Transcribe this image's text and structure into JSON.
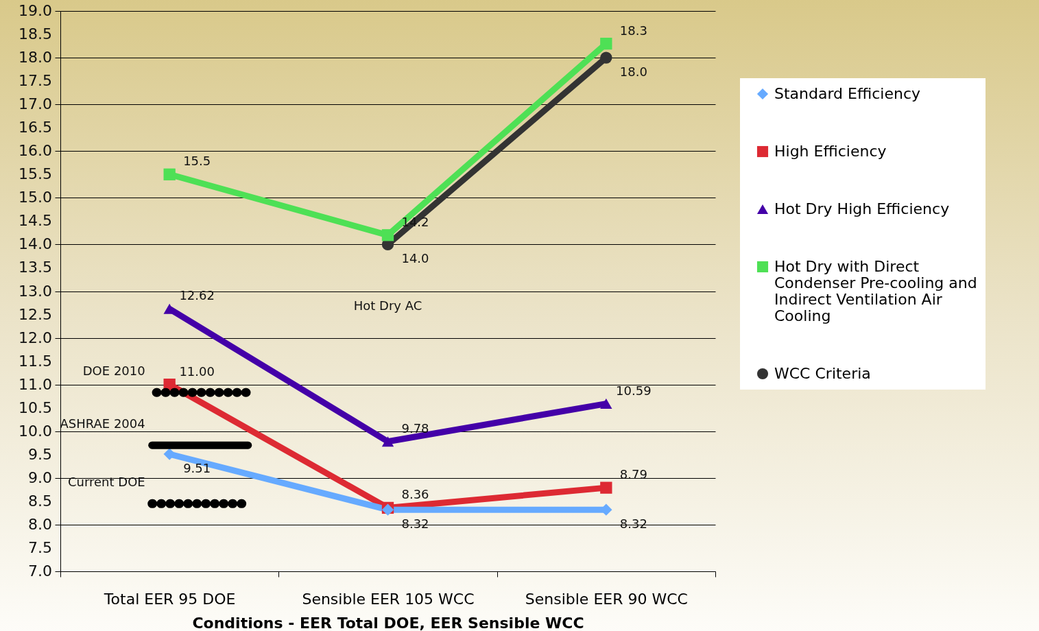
{
  "chart_data": {
    "type": "line",
    "xlabel": "Conditions - EER Total DOE, EER Sensible WCC",
    "categories": [
      "Total EER 95 DOE",
      "Sensible EER 105 WCC",
      "Sensible EER 90 WCC"
    ],
    "series": [
      {
        "name": "Standard Efficiency",
        "color": "#66aaff",
        "marker": "diamond",
        "values": [
          9.51,
          8.32,
          8.32
        ],
        "value_labels": [
          "9.51",
          "8.32",
          "8.32"
        ]
      },
      {
        "name": "High Efficiency",
        "color": "#dd2a33",
        "marker": "square",
        "values": [
          11.0,
          8.36,
          8.79
        ],
        "value_labels": [
          "11.00",
          "8.36",
          "8.79"
        ]
      },
      {
        "name": "Hot Dry High Efficiency",
        "color": "#4400a8",
        "marker": "triangle",
        "values": [
          12.62,
          9.78,
          10.59
        ],
        "value_labels": [
          "12.62",
          "9.78",
          "10.59"
        ]
      },
      {
        "name": "Hot Dry with Direct Condenser Pre-cooling and Indirect Ventilation Air Cooling",
        "color": "#4ee055",
        "marker": "square",
        "values": [
          15.5,
          14.2,
          18.3
        ],
        "value_labels": [
          "15.5",
          "14.2",
          "18.3"
        ]
      },
      {
        "name": "WCC Criteria",
        "color": "#333333",
        "marker": "circle",
        "values": [
          null,
          14.0,
          18.0
        ],
        "value_labels": [
          null,
          "14.0",
          "18.0"
        ]
      }
    ],
    "ylim": [
      7,
      19
    ],
    "yticks": [
      {
        "value": 7,
        "label": "7.0"
      },
      {
        "value": 7.5,
        "label": "7.5"
      },
      {
        "value": 8,
        "label": "8.0"
      },
      {
        "value": 8.5,
        "label": "8.5"
      },
      {
        "value": 9,
        "label": "9.0"
      },
      {
        "value": 9.5,
        "label": "9.5"
      },
      {
        "value": 10,
        "label": "10.0"
      },
      {
        "value": 10.5,
        "label": "10.5"
      },
      {
        "value": 11,
        "label": "11.0"
      },
      {
        "value": 11.5,
        "label": "11.5"
      },
      {
        "value": 12,
        "label": "12.0"
      },
      {
        "value": 12.5,
        "label": "12.5"
      },
      {
        "value": 13,
        "label": "13.0"
      },
      {
        "value": 13.5,
        "label": "13.5"
      },
      {
        "value": 14,
        "label": "14.0"
      },
      {
        "value": 14.5,
        "label": "14.5"
      },
      {
        "value": 15,
        "label": "15.0"
      },
      {
        "value": 15.5,
        "label": "15.5"
      },
      {
        "value": 16,
        "label": "16.0"
      },
      {
        "value": 16.5,
        "label": "16.5"
      },
      {
        "value": 17,
        "label": "17.0"
      },
      {
        "value": 17.5,
        "label": "17.5"
      },
      {
        "value": 18,
        "label": "18.0"
      },
      {
        "value": 18.5,
        "label": "18.5"
      },
      {
        "value": 19,
        "label": "19.0"
      }
    ],
    "ref_lines": [
      {
        "axis": "y",
        "value": 10.83,
        "label": "DOE 2010",
        "color": "#000000",
        "line_style": "dotted"
      },
      {
        "axis": "y",
        "value": 9.7,
        "label": "ASHRAE 2004",
        "color": "#000000",
        "line_style": "solid"
      },
      {
        "axis": "y",
        "value": 8.45,
        "label": "Current DOE",
        "color": "#000000",
        "line_style": "dotted"
      }
    ],
    "annotations": [
      "Hot Dry AC"
    ],
    "grid": "y",
    "legend": "right"
  }
}
